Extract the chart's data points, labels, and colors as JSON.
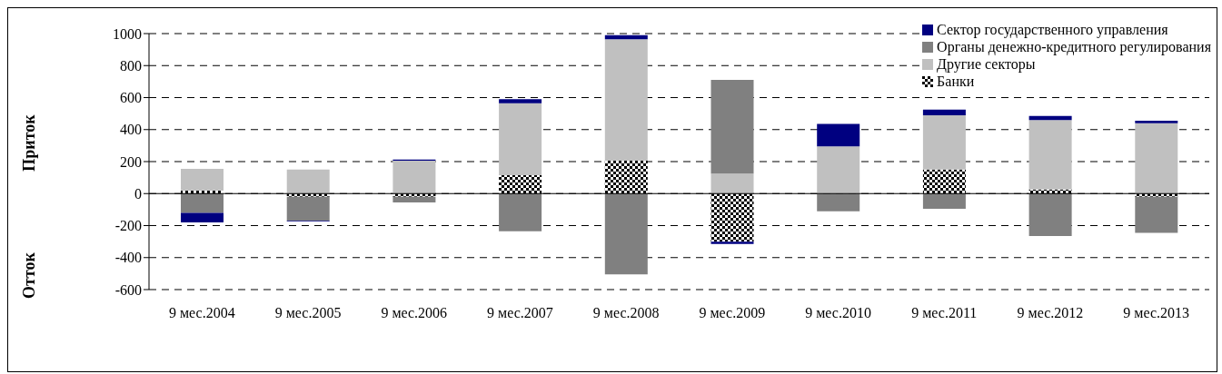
{
  "chart_data": {
    "type": "bar",
    "stacked": true,
    "ylabel": "Приток",
    "annotations": [
      "Отток"
    ],
    "categories": [
      "9 мес.2004",
      "9 мес.2005",
      "9 мес.2006",
      "9 мес.2007",
      "9 мес.2008",
      "9 мес.2009",
      "9 мес.2010",
      "9 мес.2011",
      "9 мес.2012",
      "9 мес.2013"
    ],
    "series": [
      {
        "name": "Банки",
        "color": "#000000",
        "values": [
          20,
          -20,
          -20,
          115,
          205,
          -300,
          0,
          150,
          25,
          -20
        ]
      },
      {
        "name": "Другие секторы",
        "color": "#c0c0c0",
        "values": [
          135,
          150,
          205,
          450,
          760,
          125,
          295,
          340,
          435,
          440
        ]
      },
      {
        "name": "Органы денежно-кредитного регулирования",
        "color": "#808080",
        "values": [
          -120,
          -150,
          -35,
          -235,
          -505,
          585,
          -110,
          -95,
          -265,
          -225
        ]
      },
      {
        "name": "Сектор государственного управления",
        "color": "#000080",
        "values": [
          -60,
          -5,
          8,
          25,
          25,
          -15,
          140,
          35,
          25,
          15
        ]
      }
    ],
    "ylim": [
      -600,
      1000
    ],
    "yticks": [
      -600,
      -400,
      -200,
      0,
      200,
      400,
      600,
      800,
      1000
    ],
    "grid": "y",
    "legend": "top right"
  }
}
